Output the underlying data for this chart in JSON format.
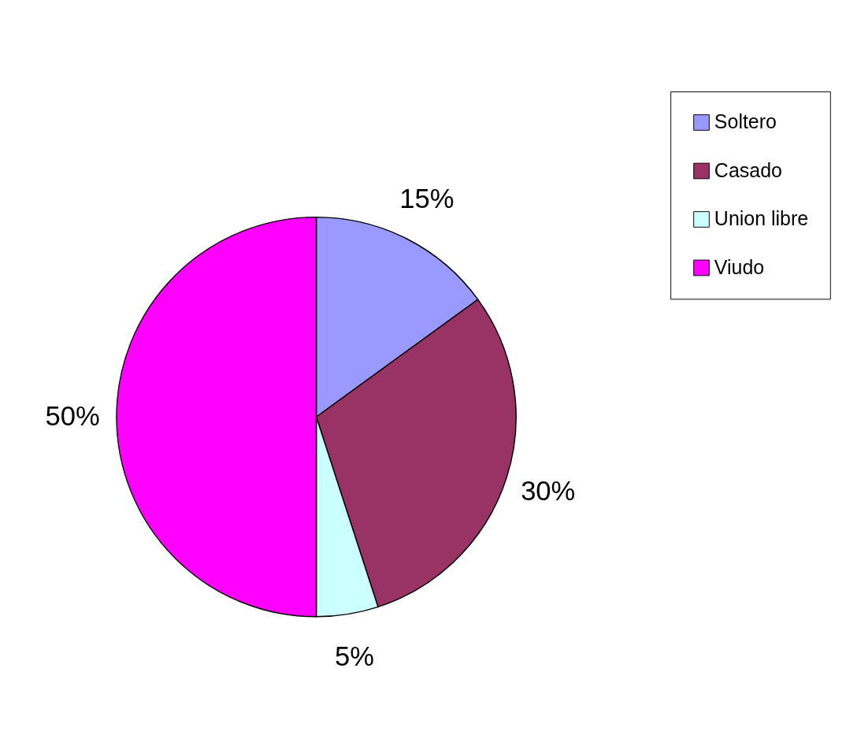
{
  "chart_data": {
    "type": "pie",
    "categories": [
      "Soltero",
      "Casado",
      "Union libre",
      "Viudo"
    ],
    "values": [
      15,
      30,
      5,
      50
    ],
    "colors": [
      "#9999ff",
      "#993366",
      "#ccffff",
      "#ff00ff"
    ],
    "value_labels": [
      "15%",
      "30%",
      "5%",
      "50%"
    ],
    "legend": "right"
  }
}
